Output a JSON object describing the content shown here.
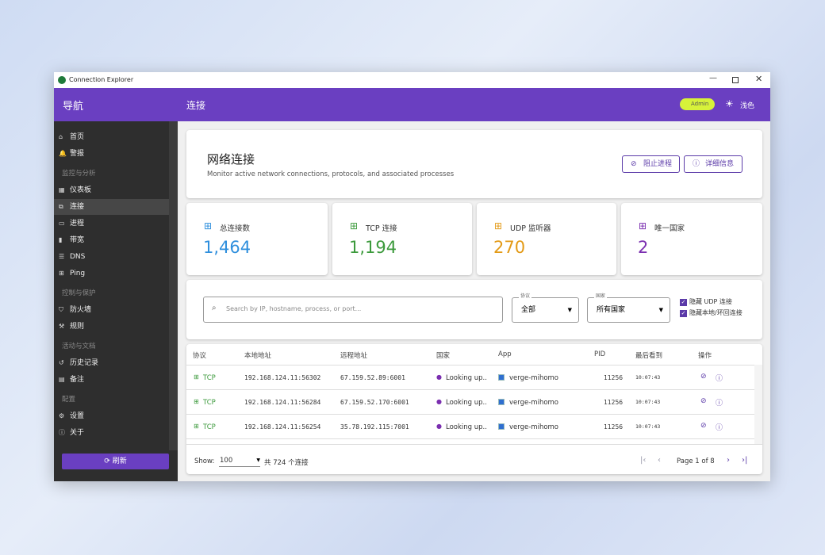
{
  "window": {
    "title": "Connection Explorer"
  },
  "sidebar": {
    "title": "导航",
    "top_items": [
      "首页",
      "警报"
    ],
    "sections": [
      {
        "label": "监控与分析",
        "items": [
          "仪表板",
          "连接",
          "进程",
          "带宽",
          "DNS",
          "Ping"
        ]
      },
      {
        "label": "控制与保护",
        "items": [
          "防火墙",
          "规则"
        ]
      },
      {
        "label": "活动与文档",
        "items": [
          "历史记录",
          "备注"
        ]
      },
      {
        "label": "配置",
        "items": [
          "设置",
          "关于"
        ]
      }
    ],
    "refresh": "刷新"
  },
  "header": {
    "title": "连接",
    "badge": "Admin",
    "theme": "浅色"
  },
  "page": {
    "title": "网络连接",
    "subtitle": "Monitor active network connections, protocols, and associated processes",
    "buttons": [
      "阻止进程",
      "详细信息"
    ]
  },
  "stats": [
    {
      "label": "总连接数",
      "value": "1,464"
    },
    {
      "label": "TCP 连接",
      "value": "1,194"
    },
    {
      "label": "UDP 监听器",
      "value": "270"
    },
    {
      "label": "唯一国家",
      "value": "2"
    }
  ],
  "filters": {
    "search_placeholder": "Search by IP, hostname, process, or port...",
    "protocol": {
      "label": "协议",
      "value": "全部"
    },
    "country": {
      "label": "国家",
      "value": "所有国家"
    },
    "checkboxes": [
      "隐藏 UDP 连接",
      "隐藏本地/环回连接"
    ]
  },
  "table": {
    "columns": [
      "协议",
      "本地地址",
      "远程地址",
      "国家",
      "App",
      "PID",
      "最后看到",
      "操作"
    ],
    "rows": [
      [
        "TCP",
        "192.168.124.11:56302",
        "67.159.52.89:6001",
        "Looking up...",
        "verge-mihomo",
        11256,
        "10:07:43"
      ],
      [
        "TCP",
        "192.168.124.11:56284",
        "67.159.52.170:6001",
        "Looking up...",
        "verge-mihomo",
        11256,
        "10:07:43"
      ],
      [
        "TCP",
        "192.168.124.11:56254",
        "35.78.192.115:7001",
        "Looking up...",
        "verge-mihomo",
        11256,
        "10:07:43"
      ]
    ]
  },
  "footer": {
    "show_label": "Show:",
    "page_size": 100,
    "total": "共 724 个连接",
    "page": "Page 1 of 8"
  }
}
